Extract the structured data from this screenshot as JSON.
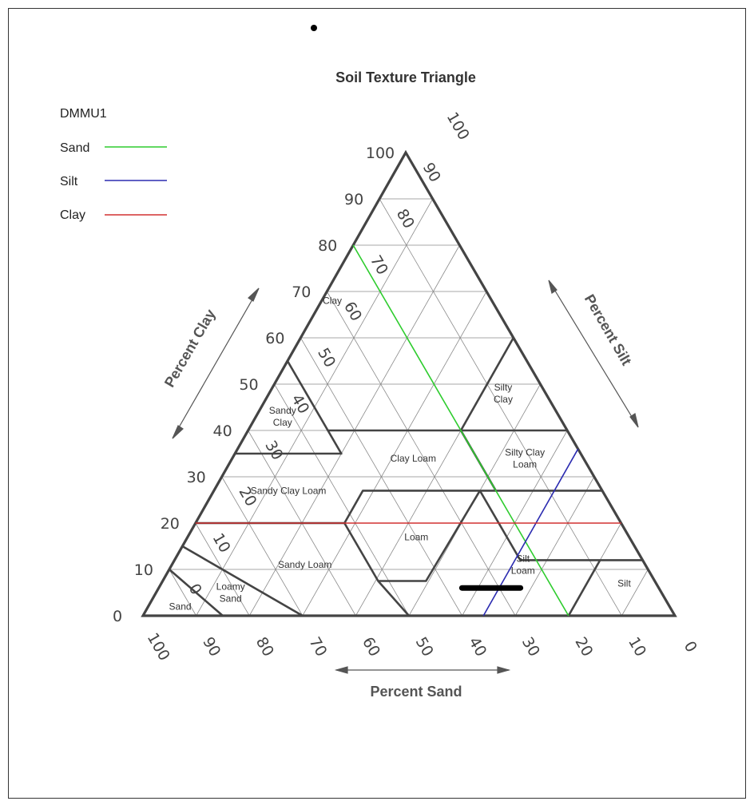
{
  "title": "Soil Texture Triangle",
  "legend": {
    "heading": "DMMU1",
    "items": [
      {
        "label": "Sand",
        "color": "#2ecc2e"
      },
      {
        "label": "Silt",
        "color": "#2b2bb0"
      },
      {
        "label": "Clay",
        "color": "#d23030"
      }
    ]
  },
  "axes": {
    "clay": {
      "label": "Percent Clay",
      "ticks": [
        "0",
        "10",
        "20",
        "30",
        "40",
        "50",
        "60",
        "70",
        "80",
        "90",
        "100"
      ]
    },
    "silt": {
      "label": "Percent Silt",
      "ticks": [
        "0",
        "10",
        "20",
        "30",
        "40",
        "50",
        "60",
        "70",
        "80",
        "90",
        "100"
      ]
    },
    "sand": {
      "label": "Percent Sand",
      "ticks": [
        "100",
        "90",
        "80",
        "70",
        "60",
        "50",
        "40",
        "30",
        "20",
        "10",
        "0"
      ]
    }
  },
  "classes": [
    {
      "lines": [
        "Clay"
      ],
      "sand": 30,
      "clay": 68
    },
    {
      "lines": [
        "Silty",
        "Clay"
      ],
      "sand": 8,
      "clay": 48
    },
    {
      "lines": [
        "Sandy",
        "Clay"
      ],
      "sand": 52,
      "clay": 43
    },
    {
      "lines": [
        "Clay Loam"
      ],
      "sand": 32,
      "clay": 34
    },
    {
      "lines": [
        "Silty Clay",
        "Loam"
      ],
      "sand": 11,
      "clay": 34
    },
    {
      "lines": [
        "Sandy Clay Loam"
      ],
      "sand": 59,
      "clay": 27
    },
    {
      "lines": [
        "Loam"
      ],
      "sand": 40,
      "clay": 17
    },
    {
      "lines": [
        "Sandy Loam"
      ],
      "sand": 64,
      "clay": 11
    },
    {
      "lines": [
        "Silt",
        "Loam"
      ],
      "sand": 23,
      "clay": 11
    },
    {
      "lines": [
        "Silt"
      ],
      "sand": 6,
      "clay": 7
    },
    {
      "lines": [
        "Loamy",
        "Sand"
      ],
      "sand": 81,
      "clay": 5
    },
    {
      "lines": [
        "Sand"
      ],
      "sand": 92,
      "clay": 2
    }
  ],
  "chart_data": {
    "type": "ternary",
    "sample": "DMMU1",
    "series": [
      {
        "name": "Sand",
        "value": 20
      },
      {
        "name": "Silt",
        "value": 64
      },
      {
        "name": "Clay",
        "value": 20
      }
    ],
    "sample_range": {
      "clay": 6,
      "sand_from": 37,
      "sand_to": 26
    }
  }
}
